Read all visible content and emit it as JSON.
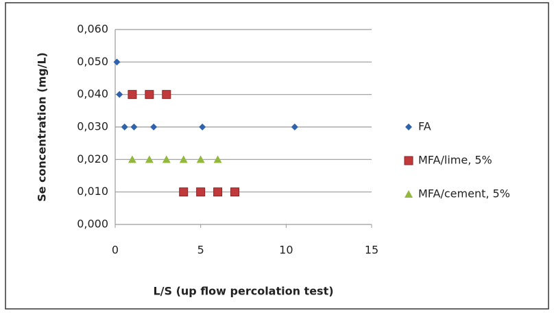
{
  "chart_data": {
    "type": "scatter",
    "xlabel": "L/S (up flow percolation test)",
    "ylabel": "Se concentration (mg/L)",
    "xlim": [
      0,
      15
    ],
    "xticks": [
      0,
      5,
      10,
      15
    ],
    "ylim": [
      0,
      0.06
    ],
    "yticks": [
      {
        "value": 0,
        "label": "0,000"
      },
      {
        "value": 0.01,
        "label": "0,010"
      },
      {
        "value": 0.02,
        "label": "0,020"
      },
      {
        "value": 0.03,
        "label": "0,030"
      },
      {
        "value": 0.04,
        "label": "0,040"
      },
      {
        "value": 0.05,
        "label": "0,050"
      },
      {
        "value": 0.06,
        "label": "0,060"
      }
    ],
    "grid": true,
    "legend": "right",
    "series": [
      {
        "name": "FA",
        "color": "#2f62ad",
        "marker": "diamond",
        "x": [
          0.1,
          0.25,
          0.55,
          1.1,
          2.25,
          5.1,
          10.5
        ],
        "values": [
          0.05,
          0.04,
          0.03,
          0.03,
          0.03,
          0.03,
          0.03
        ]
      },
      {
        "name": "MFA/lime, 5%",
        "color": "#c0393b",
        "marker": "square",
        "x": [
          1,
          2,
          3,
          4,
          5,
          6,
          7
        ],
        "values": [
          0.04,
          0.04,
          0.04,
          0.01,
          0.01,
          0.01,
          0.01
        ]
      },
      {
        "name": "MFA/cement, 5%",
        "color": "#93b83e",
        "marker": "triangle",
        "x": [
          1,
          2,
          3,
          4,
          5,
          6
        ],
        "values": [
          0.02,
          0.02,
          0.02,
          0.02,
          0.02,
          0.02
        ]
      }
    ]
  }
}
